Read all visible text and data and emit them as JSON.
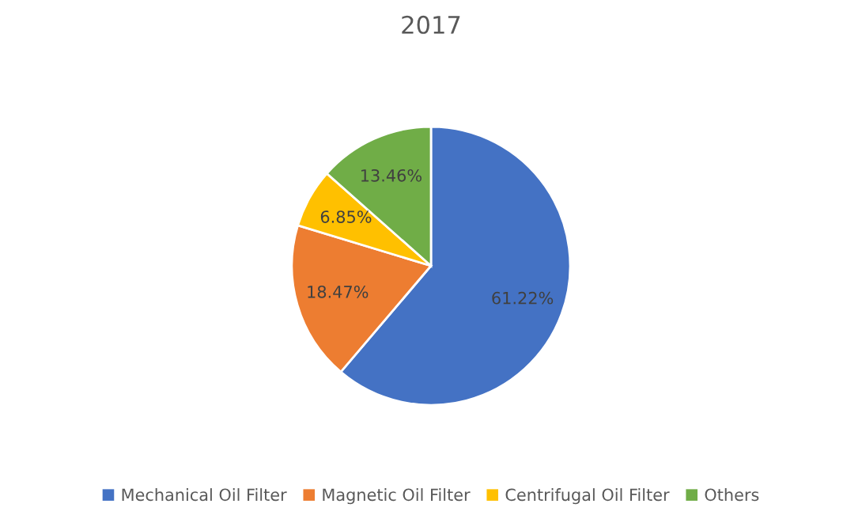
{
  "chart_data": {
    "type": "pie",
    "title": "2017",
    "categories": [
      "Mechanical Oil Filter",
      "Magnetic Oil Filter",
      "Centrifugal Oil Filter",
      "Others"
    ],
    "values": [
      61.22,
      18.47,
      6.85,
      13.46
    ],
    "colors": [
      "#4472c4",
      "#ed7d31",
      "#ffc000",
      "#70ad47"
    ],
    "value_labels": [
      "61.22%",
      "18.47%",
      "6.85%",
      "13.46%"
    ],
    "legend": "bottom"
  }
}
